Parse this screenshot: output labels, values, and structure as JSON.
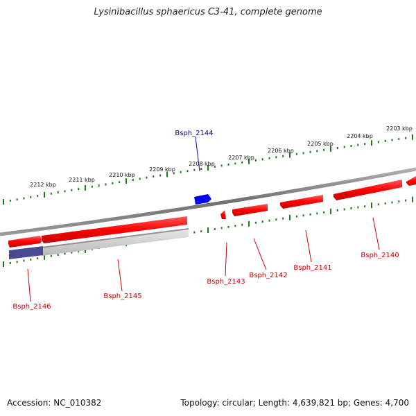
{
  "title": "Lysinibacillus sphaericus C3-41, complete genome",
  "footer": {
    "accession": "Accession: NC_010382",
    "summary": "Topology: circular; Length: 4,639,821 bp; Genes: 4,700"
  },
  "colors": {
    "forward_gene": "#ff0000",
    "highlight_gene": "#0000ff",
    "reverse_gene": "#c8c8c8",
    "pseudo_segment": "#4a4a90",
    "backbone": "#808080",
    "tick": "#1a7a1a",
    "label_red": "#cc0000",
    "label_blue": "#00008b"
  },
  "icons": [
    "genome-backbone-line"
  ],
  "kbp_ticks": [
    "2212 kbp",
    "2211 kbp",
    "2210 kbp",
    "2209 kbp",
    "2208 kbp",
    "2207 kbp",
    "2206 kbp",
    "2205 kbp",
    "2204 kbp",
    "2203 kbp"
  ],
  "gene_labels": [
    {
      "id": "Bsph_2144",
      "color": "blue"
    },
    {
      "id": "Bsph_2146",
      "color": "red"
    },
    {
      "id": "Bsph_2145",
      "color": "red"
    },
    {
      "id": "Bsph_2143",
      "color": "red"
    },
    {
      "id": "Bsph_2142",
      "color": "red"
    },
    {
      "id": "Bsph_2141",
      "color": "red"
    },
    {
      "id": "Bsph_2140",
      "color": "red"
    }
  ]
}
